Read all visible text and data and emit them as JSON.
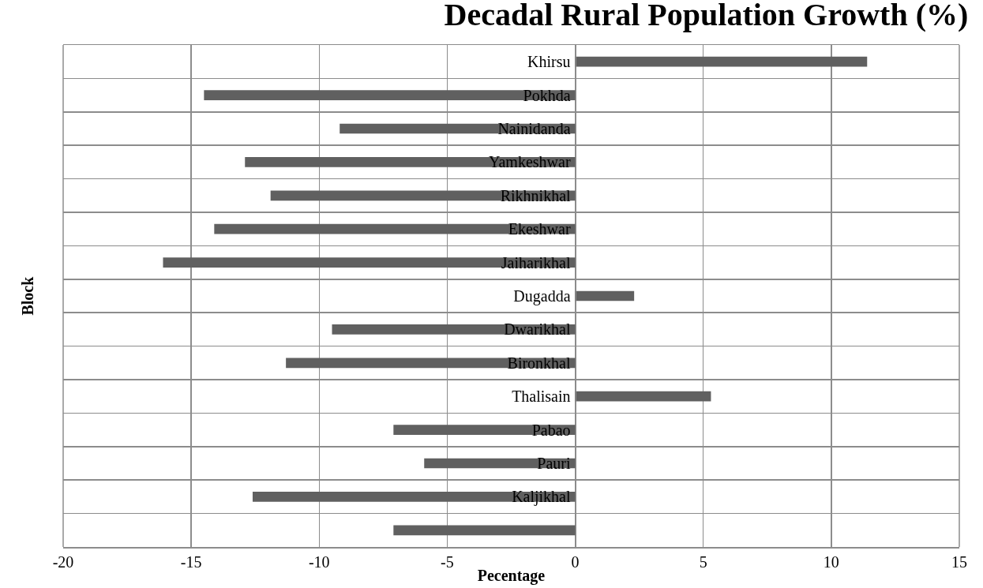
{
  "chart_data": {
    "type": "bar",
    "orientation": "horizontal",
    "title": "Decadal Rural Population Growth (%)",
    "xlabel": "Pecentage",
    "ylabel": "Block",
    "categories": [
      "Khirsu",
      "Pokhda",
      "Nainidanda",
      "Yamkeshwar",
      "Rikhnikhal",
      "Ekeshwar",
      "Jaiharikhal",
      "Dugadda",
      "Dwarikhal",
      "Bironkhal",
      "Thalisain",
      "Pabao",
      "Pauri",
      "Kaljikhal",
      null
    ],
    "values": [
      11.4,
      -14.5,
      -9.2,
      -12.9,
      -11.9,
      -14.1,
      -16.1,
      2.3,
      -9.5,
      -11.3,
      5.3,
      -7.1,
      -5.9,
      -12.6,
      -7.1
    ],
    "color": "#606060",
    "xlim": [
      -20,
      15
    ],
    "xticks": [
      -20,
      -15,
      -10,
      -5,
      0,
      5,
      10,
      15
    ],
    "grid": true
  }
}
